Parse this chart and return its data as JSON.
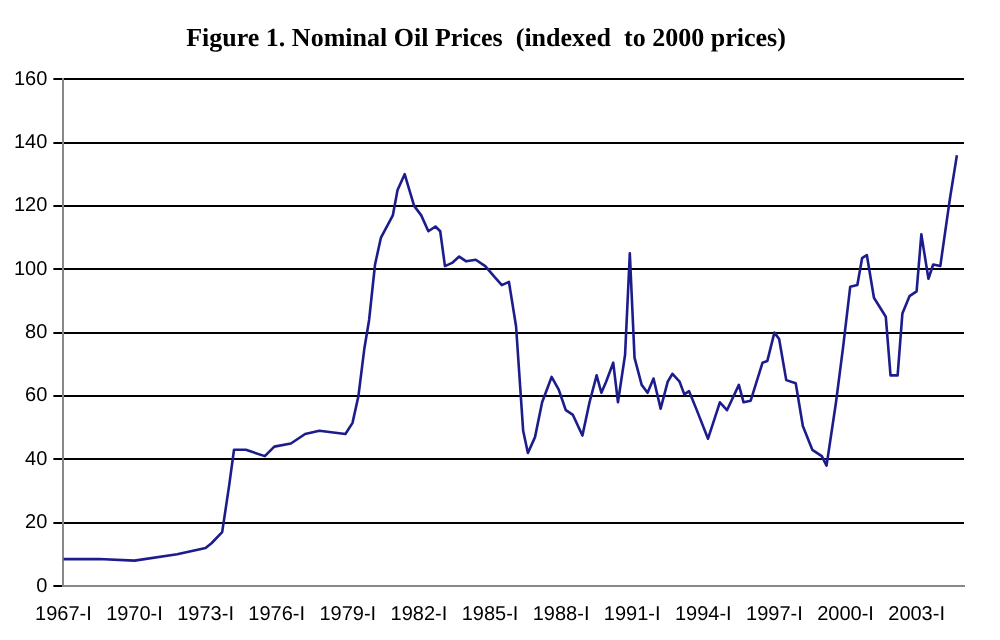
{
  "chart_data": {
    "type": "line",
    "title": "Figure 1. Nominal Oil Prices  (indexed  to 2000 prices)",
    "x": [
      1967.0,
      1968.5,
      1970.0,
      1971.8,
      1973.0,
      1973.25,
      1973.7,
      1974.0,
      1974.2,
      1974.7,
      1975.5,
      1975.9,
      1976.6,
      1977.2,
      1977.8,
      1978.9,
      1979.2,
      1979.45,
      1979.7,
      1979.9,
      1980.15,
      1980.4,
      1980.9,
      1981.1,
      1981.4,
      1981.6,
      1981.8,
      1982.1,
      1982.4,
      1982.7,
      1982.9,
      1983.1,
      1983.4,
      1983.7,
      1984.0,
      1984.4,
      1984.8,
      1985.2,
      1985.5,
      1985.8,
      1986.1,
      1986.4,
      1986.6,
      1986.9,
      1987.2,
      1987.6,
      1987.9,
      1988.2,
      1988.5,
      1988.9,
      1989.2,
      1989.5,
      1989.7,
      1989.9,
      1990.2,
      1990.4,
      1990.7,
      1990.9,
      1991.1,
      1991.4,
      1991.65,
      1991.9,
      1992.2,
      1992.5,
      1992.7,
      1993.0,
      1993.2,
      1993.4,
      1993.7,
      1994.2,
      1994.7,
      1995.0,
      1995.5,
      1995.7,
      1996.0,
      1996.5,
      1996.7,
      1997.0,
      1997.2,
      1997.5,
      1997.9,
      1998.2,
      1998.6,
      1999.0,
      1999.2,
      1999.6,
      1999.9,
      2000.2,
      2000.5,
      2000.7,
      2000.9,
      2001.2,
      2001.7,
      2001.9,
      2002.2,
      2002.4,
      2002.7,
      2003.0,
      2003.2,
      2003.5,
      2003.7,
      2004.0,
      2004.4,
      2004.7
    ],
    "values": [
      8.5,
      8.5,
      8,
      10,
      12,
      13.5,
      17,
      32,
      43,
      43,
      41,
      44,
      45,
      48,
      49,
      48,
      51.5,
      60,
      75,
      84,
      101.5,
      110,
      117,
      125,
      130,
      125,
      120,
      117,
      112,
      113.5,
      112,
      101,
      102,
      104,
      102.5,
      103,
      101,
      97.5,
      95,
      96,
      82,
      49,
      42,
      47,
      58,
      66,
      62,
      55.5,
      54,
      47.5,
      58,
      66.5,
      61,
      64.5,
      70.5,
      58,
      73,
      105,
      72,
      63.5,
      61,
      65.5,
      56,
      64.5,
      67,
      64.5,
      60.5,
      61.5,
      56,
      46.5,
      58,
      55.5,
      63.5,
      58,
      58.5,
      70.5,
      71,
      80,
      78,
      65,
      64,
      50.5,
      43,
      41,
      38,
      58,
      75.5,
      94.5,
      95,
      103.5,
      104.5,
      91,
      85,
      66.5,
      66.5,
      86,
      91.5,
      93,
      111,
      97,
      101.5,
      101,
      122,
      136
    ],
    "color": "#1c1c8c",
    "xlim": [
      1967,
      2005
    ],
    "xticks": [
      {
        "value": 1967,
        "label": "1967-I"
      },
      {
        "value": 1970,
        "label": "1970-I"
      },
      {
        "value": 1973,
        "label": "1973-I"
      },
      {
        "value": 1976,
        "label": "1976-I"
      },
      {
        "value": 1979,
        "label": "1979-I"
      },
      {
        "value": 1982,
        "label": "1982-I"
      },
      {
        "value": 1985,
        "label": "1985-I"
      },
      {
        "value": 1988,
        "label": "1988-I"
      },
      {
        "value": 1991,
        "label": "1991-I"
      },
      {
        "value": 1994,
        "label": "1994-I"
      },
      {
        "value": 1997,
        "label": "1997-I"
      },
      {
        "value": 2000,
        "label": "2000-I"
      },
      {
        "value": 2003,
        "label": "2003-I"
      }
    ],
    "ylim": [
      0,
      160
    ],
    "yticks": [
      0,
      20,
      40,
      60,
      80,
      100,
      120,
      140,
      160
    ],
    "grid": "y",
    "legend": false,
    "marker": "none"
  }
}
